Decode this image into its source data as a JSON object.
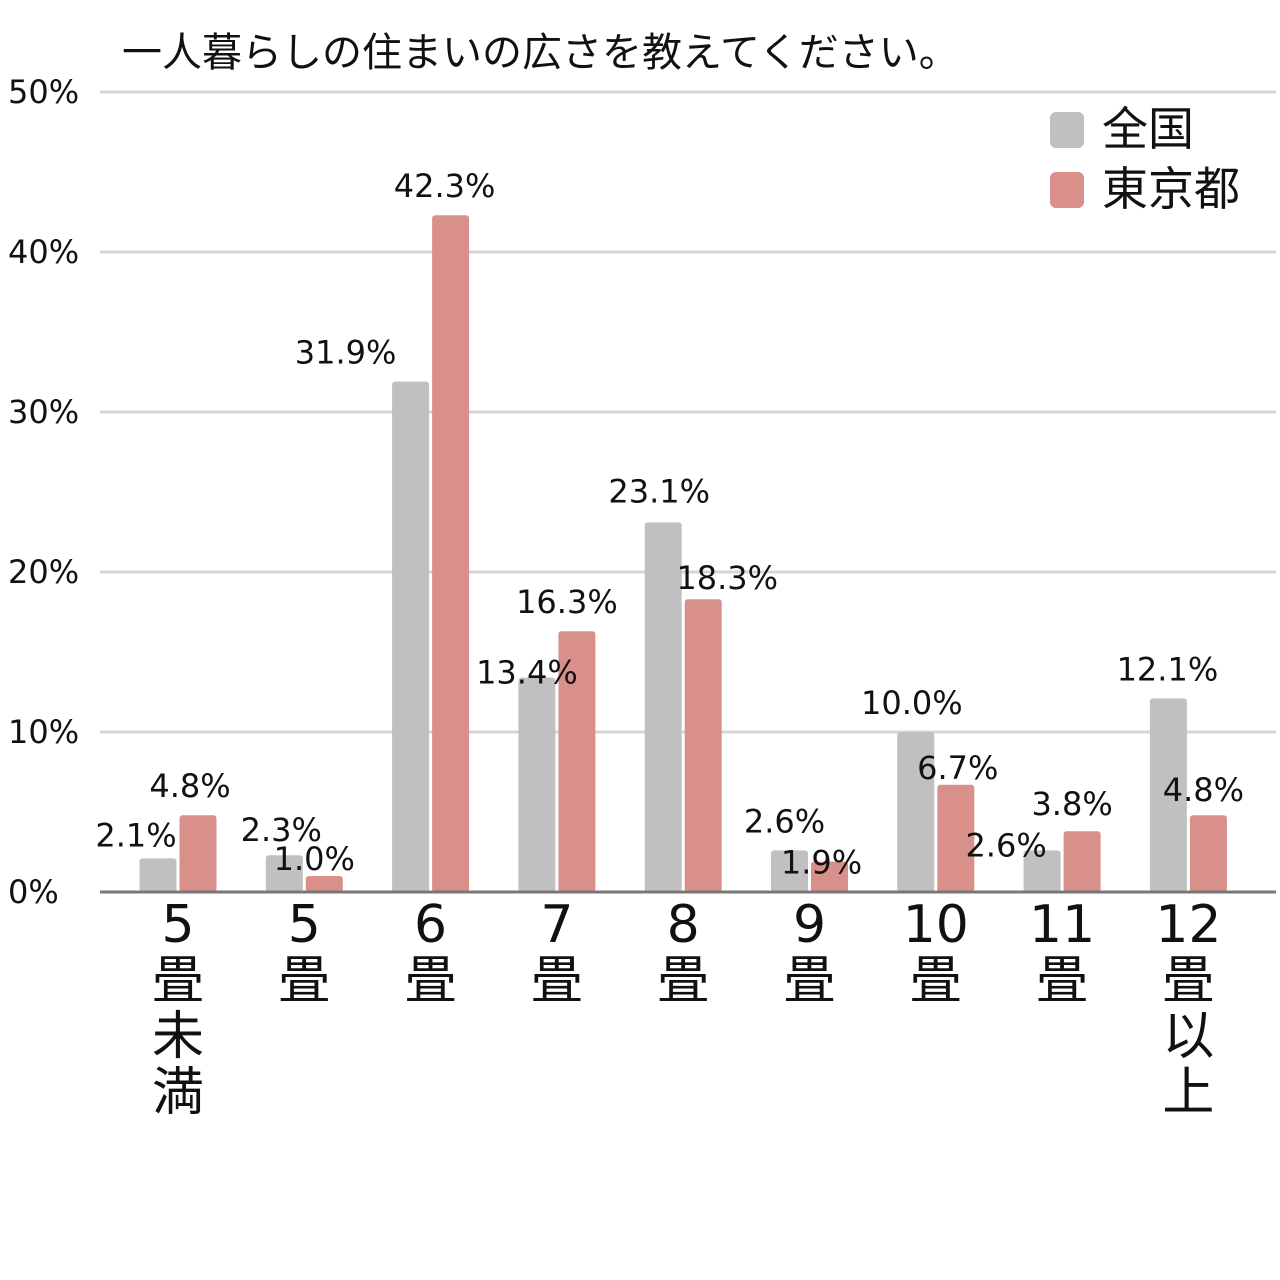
{
  "chart_data": {
    "type": "bar",
    "title": "一人暮らしの住まいの広さを教えてください。",
    "xlabel": "",
    "ylabel": "",
    "ylim": [
      0,
      50
    ],
    "y_ticks": [
      "0%",
      "10%",
      "20%",
      "30%",
      "40%",
      "50%"
    ],
    "grid": true,
    "legend_position": "top-right",
    "categories": [
      "5畳未満",
      "5畳",
      "6畳",
      "7畳",
      "8畳",
      "9畳",
      "10畳",
      "11畳",
      "12畳以上"
    ],
    "series": [
      {
        "name": "全国",
        "color": "#c0c0c0",
        "values": [
          2.1,
          2.3,
          31.9,
          13.4,
          23.1,
          2.6,
          10.0,
          2.6,
          12.1
        ],
        "labels": [
          "2.1%",
          "2.3%",
          "31.9%",
          "13.4%",
          "23.1%",
          "2.6%",
          "10.0%",
          "2.6%",
          "12.1%"
        ]
      },
      {
        "name": "東京都",
        "color": "#d9908a",
        "values": [
          4.8,
          1.0,
          42.3,
          16.3,
          18.3,
          1.9,
          6.7,
          3.8,
          4.8
        ],
        "labels": [
          "4.8%",
          "1.0%",
          "42.3%",
          "16.3%",
          "18.3%",
          "1.9%",
          "6.7%",
          "3.8%",
          "4.8%"
        ]
      }
    ]
  }
}
